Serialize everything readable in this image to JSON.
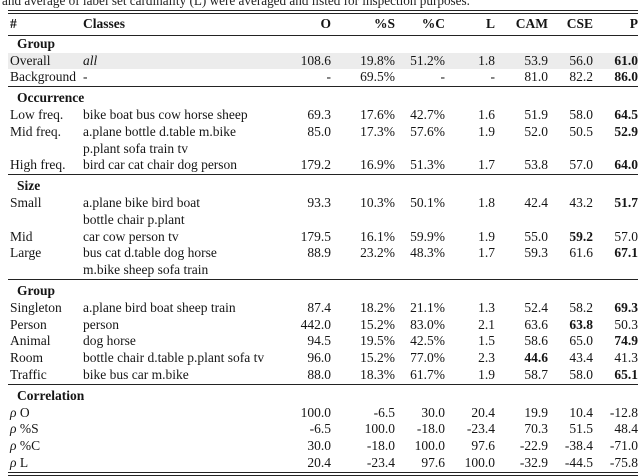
{
  "caption": "and average of label set cardinality (L) were averaged and listed for inspection purposes.",
  "colors": {
    "rule": "#232323",
    "highlight_row": "#ececec",
    "text": "#151515"
  },
  "table": {
    "columns": [
      "#",
      "Classes",
      "O",
      "%S",
      "%C",
      "L",
      "CAM",
      "CSE",
      "P"
    ],
    "sections": [
      {
        "title": "Group",
        "rows": [
          {
            "label": "Overall",
            "classes": "all",
            "classes_italic": true,
            "highlight": true,
            "values": [
              "108.6",
              "19.8%",
              "51.2%",
              "1.8",
              "53.9",
              "56.0",
              "61.0"
            ],
            "bold": [
              6
            ]
          },
          {
            "label": "Background",
            "classes": "-",
            "values": [
              "-",
              "69.5%",
              "-",
              "-",
              "81.0",
              "82.2",
              "86.0"
            ],
            "bold": [
              6
            ]
          }
        ]
      },
      {
        "title": "Occurrence",
        "rows": [
          {
            "label": "Low freq.",
            "classes": "bike boat bus cow horse sheep",
            "values": [
              "69.3",
              "17.6%",
              "42.7%",
              "1.6",
              "51.9",
              "58.0",
              "64.5"
            ],
            "bold": [
              6
            ]
          },
          {
            "label": "Mid freq.",
            "classes": "a.plane bottle d.table m.bike\np.plant sofa train tv",
            "values": [
              "85.0",
              "17.3%",
              "57.6%",
              "1.9",
              "52.0",
              "50.5",
              "52.9"
            ],
            "bold": [
              6
            ]
          },
          {
            "label": "High freq.",
            "classes": "bird car cat chair dog person",
            "values": [
              "179.2",
              "16.9%",
              "51.3%",
              "1.7",
              "53.8",
              "57.0",
              "64.0"
            ],
            "bold": [
              6
            ]
          }
        ]
      },
      {
        "title": "Size",
        "rows": [
          {
            "label": "Small",
            "classes": "a.plane bike bird boat\nbottle chair p.plant",
            "values": [
              "93.3",
              "10.3%",
              "50.1%",
              "1.8",
              "42.4",
              "43.2",
              "51.7"
            ],
            "bold": [
              6
            ]
          },
          {
            "label": "Mid",
            "classes": "car cow person tv",
            "values": [
              "179.5",
              "16.1%",
              "59.9%",
              "1.9",
              "55.0",
              "59.2",
              "57.0"
            ],
            "bold": [
              5
            ]
          },
          {
            "label": "Large",
            "classes": "bus cat d.table dog horse\nm.bike sheep sofa train",
            "values": [
              "88.9",
              "23.2%",
              "48.3%",
              "1.7",
              "59.3",
              "61.6",
              "67.1"
            ],
            "bold": [
              6
            ]
          }
        ]
      },
      {
        "title": "Group",
        "rows": [
          {
            "label": "Singleton",
            "classes": "a.plane bird boat sheep train",
            "values": [
              "87.4",
              "18.2%",
              "21.1%",
              "1.3",
              "52.4",
              "58.2",
              "69.3"
            ],
            "bold": [
              6
            ]
          },
          {
            "label": "Person",
            "classes": "person",
            "values": [
              "442.0",
              "15.2%",
              "83.0%",
              "2.1",
              "63.6",
              "63.8",
              "50.3"
            ],
            "bold": [
              5
            ]
          },
          {
            "label": "Animal",
            "classes": "dog horse",
            "values": [
              "94.5",
              "19.5%",
              "42.5%",
              "1.5",
              "58.6",
              "65.0",
              "74.9"
            ],
            "bold": [
              6
            ]
          },
          {
            "label": "Room",
            "classes": "bottle chair d.table p.plant sofa tv",
            "values": [
              "96.0",
              "15.2%",
              "77.0%",
              "2.3",
              "44.6",
              "43.4",
              "41.3"
            ],
            "bold": [
              4
            ]
          },
          {
            "label": "Traffic",
            "classes": "bike bus car m.bike",
            "values": [
              "88.0",
              "18.3%",
              "61.7%",
              "1.9",
              "58.7",
              "58.0",
              "65.1"
            ],
            "bold": [
              6
            ]
          }
        ]
      },
      {
        "title": "Correlation",
        "rows": [
          {
            "label": "ρ O",
            "rho": true,
            "classes": "",
            "values": [
              "100.0",
              "-6.5",
              "30.0",
              "20.4",
              "19.9",
              "10.4",
              "-12.8"
            ],
            "bold": []
          },
          {
            "label": "ρ %S",
            "rho": true,
            "classes": "",
            "values": [
              "-6.5",
              "100.0",
              "-18.0",
              "-23.4",
              "70.3",
              "51.5",
              "48.4"
            ],
            "bold": []
          },
          {
            "label": "ρ %C",
            "rho": true,
            "classes": "",
            "values": [
              "30.0",
              "-18.0",
              "100.0",
              "97.6",
              "-22.9",
              "-38.4",
              "-71.0"
            ],
            "bold": []
          },
          {
            "label": "ρ L",
            "rho": true,
            "classes": "",
            "values": [
              "20.4",
              "-23.4",
              "97.6",
              "100.0",
              "-32.9",
              "-44.5",
              "-75.8"
            ],
            "bold": []
          }
        ]
      }
    ]
  }
}
